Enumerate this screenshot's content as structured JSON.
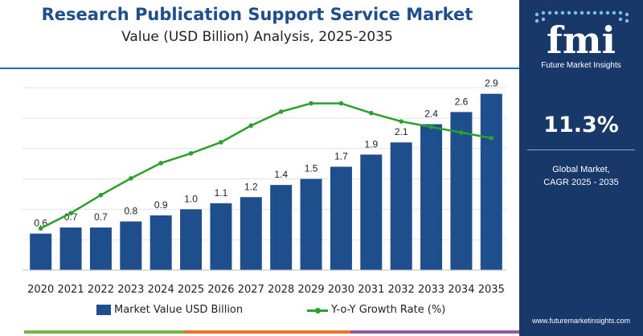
{
  "colors": {
    "bar": "#1f4e8c",
    "line": "#2ca02c",
    "panel": "#19386a",
    "rule": "#1b6fc4"
  },
  "header": {
    "title": "Research Publication Support Service Market",
    "subtitle": "Value (USD Billion) Analysis, 2025-2035"
  },
  "chart_data": {
    "type": "bar",
    "categories": [
      "2020",
      "2021",
      "2022",
      "2023",
      "2024",
      "2025",
      "2026",
      "2027",
      "2028",
      "2029",
      "2030",
      "2031",
      "2032",
      "2033",
      "2034",
      "2035"
    ],
    "series": [
      {
        "name": "Market Value USD Billion",
        "type": "bar",
        "values": [
          0.6,
          0.7,
          0.7,
          0.8,
          0.9,
          1.0,
          1.1,
          1.2,
          1.4,
          1.5,
          1.7,
          1.9,
          2.1,
          2.4,
          2.6,
          2.9
        ],
        "labels": [
          "0.6",
          "0.7",
          "0.7",
          "0.8",
          "0.9",
          "1.0",
          "1.1",
          "1.2",
          "1.4",
          "1.5",
          "1.7",
          "1.9",
          "2.1",
          "2.4",
          "2.6",
          "2.9"
        ]
      },
      {
        "name": "Y-o-Y Growth Rate (%)",
        "type": "line",
        "axis": "secondary",
        "values": [
          3.0,
          4.1,
          5.4,
          6.6,
          7.7,
          8.4,
          9.2,
          10.4,
          11.4,
          12.0,
          12.0,
          11.3,
          10.7,
          10.3,
          9.9,
          9.5
        ]
      }
    ],
    "ylim": [
      0,
      3.2
    ],
    "y2lim": [
      0,
      14
    ],
    "legend": "bottom",
    "grid": true
  },
  "panel": {
    "logo": "fmi",
    "logo_sub": "Future Market Insights",
    "cagr_value": "11.3%",
    "cagr_label_line1": "Global Market,",
    "cagr_label_line2": "CAGR 2025 - 2035",
    "website": "www.futuremarketinsights.com"
  }
}
